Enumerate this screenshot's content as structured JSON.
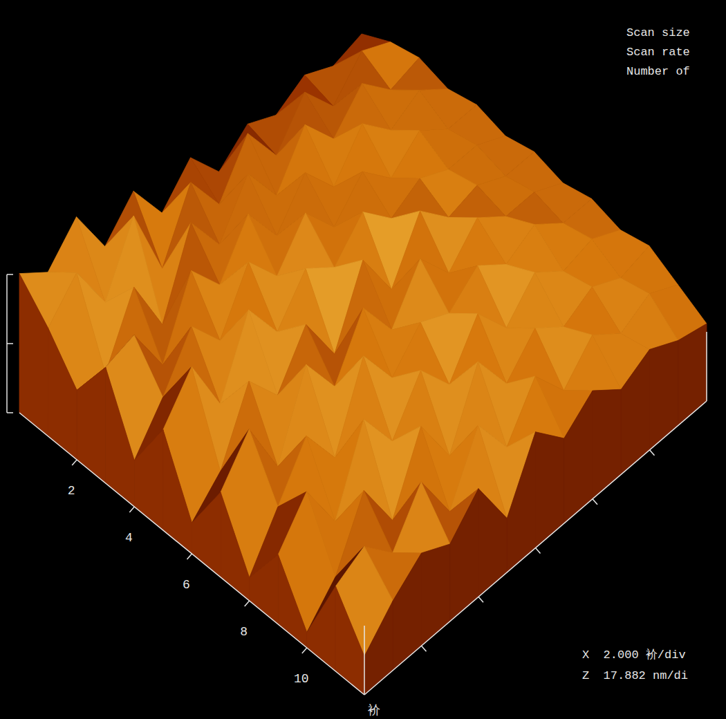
{
  "chart_data": {
    "type": "surface3d",
    "info_labels": [
      "Scan size",
      "Scan rate",
      "Number of"
    ],
    "scale_labels": [
      "X  2.000 衸/div",
      "Z  17.882 nm/di"
    ],
    "x_unit_label": "衸",
    "xlim": [
      0,
      12
    ],
    "xticks": [
      2,
      4,
      6,
      8,
      10
    ],
    "ylim": [
      0,
      12
    ],
    "yticks": [
      2,
      4,
      6,
      8,
      10
    ],
    "tick_labels": "x",
    "grid": false,
    "z_scale_bar": {
      "lim": [
        0,
        35.764
      ],
      "ticks": [
        0,
        17.882,
        35.764
      ]
    },
    "colors": [
      "#4a0c00",
      "#9a3300",
      "#d6780c",
      "#f6c84a"
    ],
    "x": [
      0,
      1,
      2,
      3,
      4,
      5,
      6,
      7,
      8,
      9,
      10,
      11,
      12
    ],
    "y": [
      0,
      1,
      2,
      3,
      4,
      5,
      6,
      7,
      8,
      9,
      10,
      11,
      12
    ],
    "z": [
      [
        36,
        28,
        18,
        30,
        12,
        26,
        8,
        22,
        6,
        18,
        4,
        22,
        10
      ],
      [
        30,
        36,
        16,
        32,
        22,
        36,
        15,
        32,
        18,
        28,
        12,
        26,
        18
      ],
      [
        38,
        22,
        32,
        18,
        34,
        20,
        32,
        16,
        30,
        14,
        28,
        18,
        24
      ],
      [
        24,
        38,
        16,
        36,
        24,
        38,
        22,
        36,
        18,
        34,
        14,
        30,
        20
      ],
      [
        32,
        18,
        36,
        26,
        38,
        26,
        34,
        24,
        38,
        22,
        32,
        16,
        28
      ],
      [
        20,
        34,
        24,
        38,
        28,
        36,
        20,
        38,
        26,
        34,
        18,
        32,
        14
      ],
      [
        28,
        22,
        36,
        26,
        38,
        30,
        38,
        26,
        34,
        24,
        36,
        20,
        30
      ],
      [
        18,
        34,
        24,
        36,
        28,
        38,
        24,
        38,
        30,
        36,
        24,
        32,
        22
      ],
      [
        24,
        22,
        36,
        26,
        36,
        30,
        38,
        28,
        36,
        26,
        32,
        22,
        28
      ],
      [
        20,
        32,
        26,
        36,
        28,
        34,
        30,
        36,
        30,
        34,
        26,
        30,
        22
      ],
      [
        24,
        22,
        34,
        28,
        34,
        30,
        32,
        30,
        34,
        28,
        30,
        24,
        26
      ],
      [
        20,
        30,
        26,
        32,
        28,
        30,
        28,
        30,
        28,
        30,
        26,
        28,
        22
      ],
      [
        22,
        26,
        28,
        26,
        28,
        26,
        28,
        26,
        28,
        26,
        28,
        24,
        20
      ]
    ]
  }
}
